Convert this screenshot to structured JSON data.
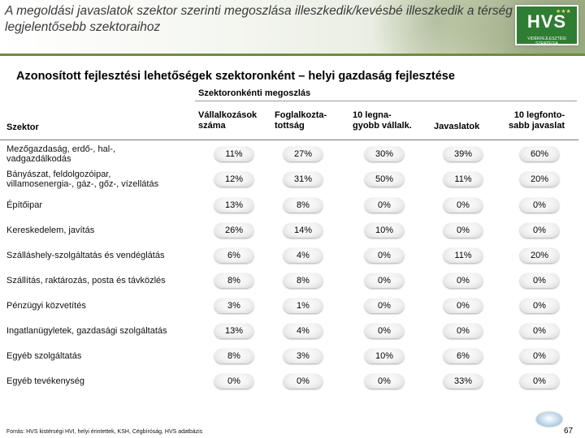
{
  "header": {
    "title": "A megoldási javaslatok szektor szerinti megoszlása illeszkedik/kevésbé illeszkedik a térség legjelentősebb szektoraihoz",
    "logo_text": "HVS",
    "logo_sub": "VIDÉKFEJLESZTÉSI STRATÉGIA"
  },
  "subtitle": "Azonosított fejlesztési lehetőségek szektoronként – helyi gazdaság fejlesztése",
  "table": {
    "group_header": "Szektoronkénti megoszlás",
    "sector_header": "Szektor",
    "columns": [
      "Vállalkozások száma",
      "Foglalkoztatottság",
      "10 legnagyobb vállalk.",
      "Javaslatok",
      "10 legfontosabb javaslat"
    ],
    "column_header_lines": [
      [
        "Vállalkozások",
        "száma"
      ],
      [
        "Foglalkozta-",
        "tottság"
      ],
      [
        "10 legna-",
        "gyobb vállalk."
      ],
      [
        "Javaslatok"
      ],
      [
        "10 legfonto-",
        "sabb javaslat"
      ]
    ],
    "rows": [
      {
        "label_lines": [
          "Mezőgazdaság, erdő-, hal-,",
          "vadgazdálkodás"
        ],
        "values": [
          "11%",
          "27%",
          "30%",
          "39%",
          "60%"
        ]
      },
      {
        "label_lines": [
          "Bányászat, feldolgozóipar,",
          "villamosenergia-, gáz-, gőz-, vízellátás"
        ],
        "values": [
          "12%",
          "31%",
          "50%",
          "11%",
          "20%"
        ]
      },
      {
        "label_lines": [
          "Építőipar"
        ],
        "values": [
          "13%",
          "8%",
          "0%",
          "0%",
          "0%"
        ]
      },
      {
        "label_lines": [
          "Kereskedelem, javítás"
        ],
        "values": [
          "26%",
          "14%",
          "10%",
          "0%",
          "0%"
        ]
      },
      {
        "label_lines": [
          "Szálláshely-szolgáltatás és vendéglátás"
        ],
        "values": [
          "6%",
          "4%",
          "0%",
          "11%",
          "20%"
        ]
      },
      {
        "label_lines": [
          "Szállítás, raktározás, posta és távközlés"
        ],
        "values": [
          "8%",
          "8%",
          "0%",
          "0%",
          "0%"
        ]
      },
      {
        "label_lines": [
          "Pénzügyi közvetítés"
        ],
        "values": [
          "3%",
          "1%",
          "0%",
          "0%",
          "0%"
        ]
      },
      {
        "label_lines": [
          "Ingatlanügyletek, gazdasági szolgáltatás"
        ],
        "values": [
          "13%",
          "4%",
          "0%",
          "0%",
          "0%"
        ]
      },
      {
        "label_lines": [
          "Egyéb szolgáltatás"
        ],
        "values": [
          "8%",
          "3%",
          "10%",
          "6%",
          "0%"
        ]
      },
      {
        "label_lines": [
          "Egyéb tevékenység"
        ],
        "values": [
          "0%",
          "0%",
          "0%",
          "33%",
          "0%"
        ]
      }
    ]
  },
  "footer": {
    "source": "Forrás: HVS kistérségi HVI, helyi érintettek, KSH, Cégbíróság, HVS adatbázis",
    "page_number": "67"
  },
  "colors": {
    "divider": "#6f8d3b",
    "logo_bg": "#2e7d32"
  }
}
